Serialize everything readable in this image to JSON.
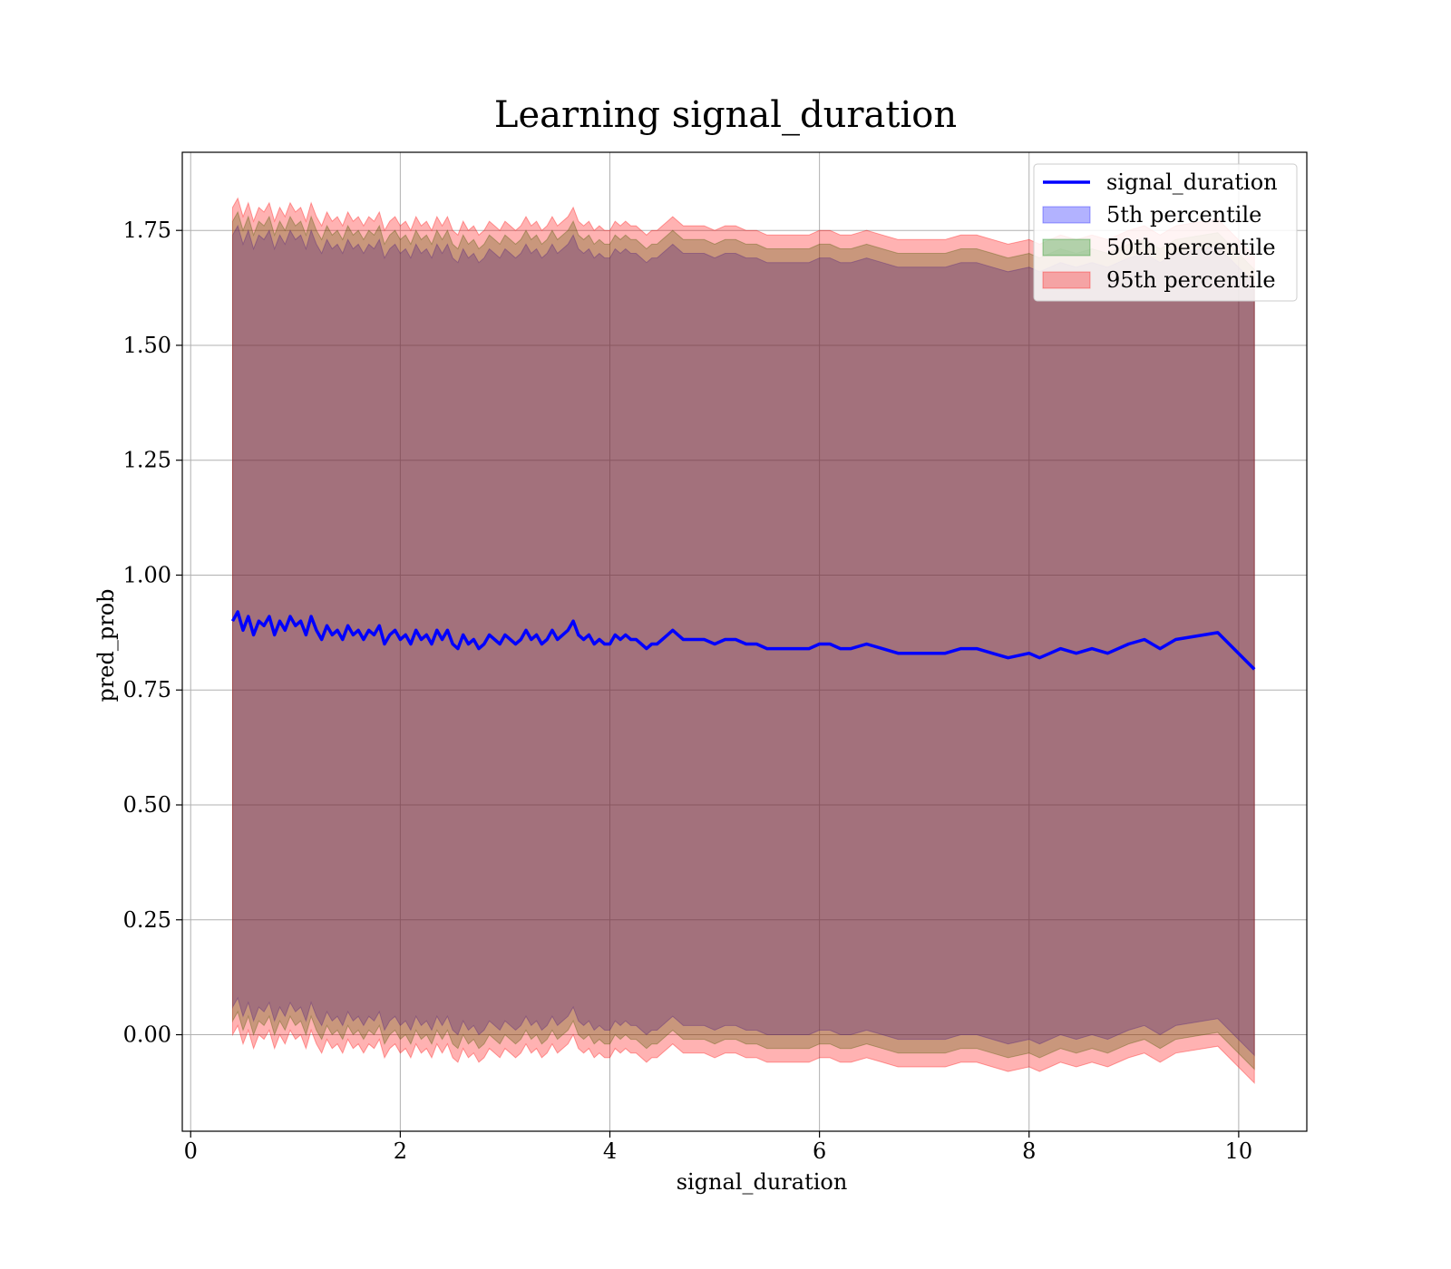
{
  "chart_data": {
    "type": "line",
    "title": "Learning signal_duration",
    "xlabel": "signal_duration",
    "ylabel": "pred_prob",
    "xlim": [
      -0.08,
      10.65
    ],
    "ylim": [
      -0.21,
      1.92
    ],
    "x_ticks": [
      0,
      2,
      4,
      6,
      8,
      10
    ],
    "y_ticks": [
      0.0,
      0.25,
      0.5,
      0.75,
      1.0,
      1.25,
      1.5,
      1.75
    ],
    "x_tick_labels": [
      "0",
      "2",
      "4",
      "6",
      "8",
      "10"
    ],
    "y_tick_labels": [
      "0.00",
      "0.25",
      "0.50",
      "0.75",
      "1.00",
      "1.25",
      "1.50",
      "1.75"
    ],
    "grid": true,
    "legend_position": "top-right",
    "series": [
      {
        "name": "signal_duration",
        "kind": "line",
        "color": "#0000ff",
        "x": [
          0.4,
          0.45,
          0.5,
          0.55,
          0.6,
          0.65,
          0.7,
          0.75,
          0.8,
          0.85,
          0.9,
          0.95,
          1.0,
          1.05,
          1.1,
          1.15,
          1.2,
          1.25,
          1.3,
          1.35,
          1.4,
          1.45,
          1.5,
          1.55,
          1.6,
          1.65,
          1.7,
          1.75,
          1.8,
          1.85,
          1.9,
          1.95,
          2.0,
          2.05,
          2.1,
          2.15,
          2.2,
          2.25,
          2.3,
          2.35,
          2.4,
          2.45,
          2.5,
          2.55,
          2.6,
          2.65,
          2.7,
          2.75,
          2.8,
          2.85,
          2.9,
          2.95,
          3.0,
          3.05,
          3.1,
          3.15,
          3.2,
          3.25,
          3.3,
          3.35,
          3.4,
          3.45,
          3.5,
          3.55,
          3.6,
          3.65,
          3.7,
          3.75,
          3.8,
          3.85,
          3.9,
          3.95,
          4.0,
          4.05,
          4.1,
          4.15,
          4.2,
          4.25,
          4.3,
          4.35,
          4.4,
          4.45,
          4.5,
          4.55,
          4.6,
          4.65,
          4.7,
          4.8,
          4.9,
          5.0,
          5.1,
          5.2,
          5.3,
          5.4,
          5.5,
          5.6,
          5.7,
          5.8,
          5.9,
          6.0,
          6.1,
          6.2,
          6.3,
          6.45,
          6.6,
          6.75,
          6.9,
          7.05,
          7.2,
          7.35,
          7.5,
          7.65,
          7.8,
          8.0,
          8.1,
          8.2,
          8.3,
          8.45,
          8.6,
          8.75,
          8.95,
          9.1,
          9.25,
          9.4,
          9.8,
          10.15
        ],
        "y": [
          0.9,
          0.92,
          0.88,
          0.91,
          0.87,
          0.9,
          0.89,
          0.91,
          0.87,
          0.9,
          0.88,
          0.91,
          0.89,
          0.9,
          0.87,
          0.91,
          0.88,
          0.86,
          0.89,
          0.87,
          0.88,
          0.86,
          0.89,
          0.87,
          0.88,
          0.86,
          0.88,
          0.87,
          0.89,
          0.85,
          0.87,
          0.88,
          0.86,
          0.87,
          0.85,
          0.88,
          0.86,
          0.87,
          0.85,
          0.88,
          0.86,
          0.88,
          0.85,
          0.84,
          0.87,
          0.85,
          0.86,
          0.84,
          0.85,
          0.87,
          0.86,
          0.85,
          0.87,
          0.86,
          0.85,
          0.86,
          0.88,
          0.86,
          0.87,
          0.85,
          0.86,
          0.88,
          0.86,
          0.87,
          0.88,
          0.9,
          0.87,
          0.86,
          0.87,
          0.85,
          0.86,
          0.85,
          0.85,
          0.87,
          0.86,
          0.87,
          0.86,
          0.86,
          0.85,
          0.84,
          0.85,
          0.85,
          0.86,
          0.87,
          0.88,
          0.87,
          0.86,
          0.86,
          0.86,
          0.85,
          0.86,
          0.86,
          0.85,
          0.85,
          0.84,
          0.84,
          0.84,
          0.84,
          0.84,
          0.85,
          0.85,
          0.84,
          0.84,
          0.85,
          0.84,
          0.83,
          0.83,
          0.83,
          0.83,
          0.84,
          0.84,
          0.83,
          0.82,
          0.83,
          0.82,
          0.83,
          0.84,
          0.83,
          0.84,
          0.83,
          0.85,
          0.86,
          0.84,
          0.86,
          0.875,
          0.795
        ]
      },
      {
        "name": "5th percentile",
        "kind": "band",
        "color": "#0000ff",
        "offset_high": 0.84,
        "offset_low": -0.84
      },
      {
        "name": "50th percentile",
        "kind": "band",
        "color": "#008000",
        "offset_high": 0.87,
        "offset_low": -0.87
      },
      {
        "name": "95th percentile",
        "kind": "band",
        "color": "#ff0000",
        "offset_high": 0.9,
        "offset_low": -0.9
      }
    ]
  }
}
